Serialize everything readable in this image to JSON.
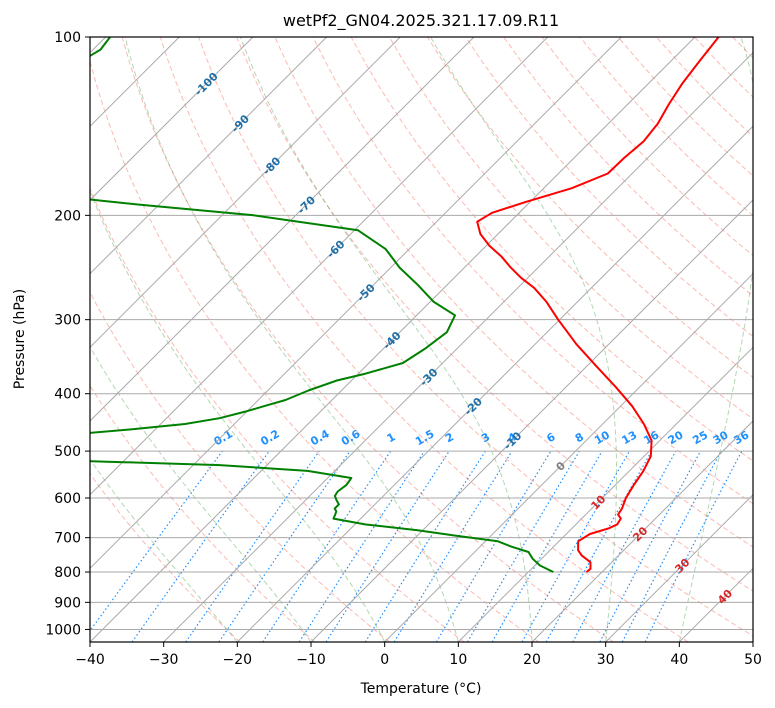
{
  "chart_data": {
    "type": "skewt",
    "title": "wetPf2_GN04.2025.321.17.09.R11",
    "xlabel": "Temperature (°C)",
    "ylabel": "Pressure (hPa)",
    "xlim": [
      -40,
      50
    ],
    "ylim": [
      1050,
      100
    ],
    "x_ticks": [
      "−40",
      "−30",
      "−20",
      "−10",
      "0",
      "10",
      "20",
      "30",
      "40",
      "50"
    ],
    "y_ticks": [
      "100",
      "200",
      "300",
      "400",
      "500",
      "600",
      "700",
      "800",
      "900",
      "1000"
    ],
    "y_tick_values": [
      100,
      200,
      300,
      400,
      500,
      600,
      700,
      800,
      900,
      1000
    ],
    "grid": true,
    "colors": {
      "temperature": "#ff0000",
      "dewpoint": "#008000",
      "dry_adiabat": "#fa8072",
      "moist_adiabat": "#228b22",
      "mixing_ratio": "#1e90ff",
      "isotherm_label": "#1f6fa8",
      "isotherm_warm_label": "#d62728",
      "zero_label": "#808080"
    },
    "series": [
      {
        "name": "Temperature",
        "pressure": [
          800,
          790,
          770,
          750,
          735,
          710,
          690,
          675,
          665,
          650,
          640,
          625,
          600,
          570,
          540,
          510,
          480,
          450,
          420,
          390,
          360,
          330,
          300,
          280,
          265,
          255,
          245,
          235,
          225,
          215,
          205,
          198,
          190,
          180,
          170,
          160,
          150,
          140,
          130,
          120,
          110,
          100
        ],
        "temp": [
          17.9,
          18.0,
          17.1,
          15.0,
          13.8,
          12.6,
          13.2,
          15.0,
          15.6,
          15.3,
          14.4,
          14.1,
          13.2,
          12.5,
          11.9,
          10.9,
          8.9,
          5.6,
          1.6,
          -3.2,
          -8.6,
          -14.4,
          -20.2,
          -24.2,
          -27.8,
          -30.9,
          -33.7,
          -36.4,
          -39.6,
          -42.4,
          -44.5,
          -43.7,
          -40.6,
          -36.2,
          -33.3,
          -33.2,
          -32.8,
          -33.3,
          -34.4,
          -35.4,
          -36.1,
          -36.8
        ]
      },
      {
        "name": "Dewpoint",
        "pressure": [
          800,
          780,
          760,
          740,
          725,
          710,
          695,
          680,
          665,
          650,
          640,
          632,
          625,
          615,
          605,
          595,
          585,
          570,
          555,
          540,
          528,
          520,
          510,
          500,
          490,
          480,
          474,
          470,
          460,
          450,
          440,
          428,
          420,
          410,
          395,
          380,
          370,
          355,
          335,
          315,
          295,
          280,
          262,
          245,
          228,
          212,
          200,
          192,
          186,
          184,
          182,
          178,
          172,
          165,
          158,
          152,
          146,
          141,
          138,
          134,
          128,
          120,
          112,
          105,
          100
        ],
        "dewp": [
          13.4,
          10.7,
          8.8,
          7.3,
          4.3,
          1.7,
          -4.7,
          -10.7,
          -18.5,
          -23.7,
          -24.0,
          -24.3,
          -24.9,
          -24.9,
          -25.8,
          -26.6,
          -26.8,
          -26.5,
          -26.8,
          -33.7,
          -46.4,
          -64.4,
          -86.0,
          -89.7,
          -86.0,
          -84.0,
          -78.0,
          -71.8,
          -63.6,
          -56.7,
          -52.8,
          -50.0,
          -48.4,
          -46.3,
          -44.5,
          -42.0,
          -39.0,
          -35.4,
          -34.3,
          -33.6,
          -34.8,
          -39.5,
          -44.0,
          -48.8,
          -53.2,
          -59.5,
          -75.7,
          -92.5,
          -104.0,
          -109.2,
          -108.7,
          -109.1,
          -108.8,
          -109.3,
          -110.8,
          -112.5,
          -114.3,
          -115.9,
          -116.8,
          -117.8,
          -118.3,
          -119.5,
          -120.5,
          -119.0,
          -119.4
        ]
      }
    ],
    "isotherm_labels": [
      "-100",
      "-90",
      "-80",
      "-70",
      "-60",
      "-50",
      "-40",
      "-30",
      "-20",
      "-10",
      "0",
      "10",
      "20",
      "30",
      "40"
    ],
    "isotherm_label_values": [
      -100,
      -90,
      -80,
      -70,
      -60,
      -50,
      -40,
      -30,
      -20,
      -10,
      0,
      10,
      20,
      30,
      40
    ],
    "mixing_ratio_labels": [
      "0.1",
      "0.2",
      "0.4",
      "0.6",
      "1",
      "1.5",
      "2",
      "3",
      "4",
      "6",
      "8",
      "10",
      "13",
      "16",
      "20",
      "25",
      "30",
      "36"
    ],
    "mixing_ratio_values": [
      0.1,
      0.2,
      0.4,
      0.6,
      1,
      1.5,
      2,
      3,
      4,
      6,
      8,
      10,
      13,
      16,
      20,
      25,
      30,
      36
    ]
  }
}
